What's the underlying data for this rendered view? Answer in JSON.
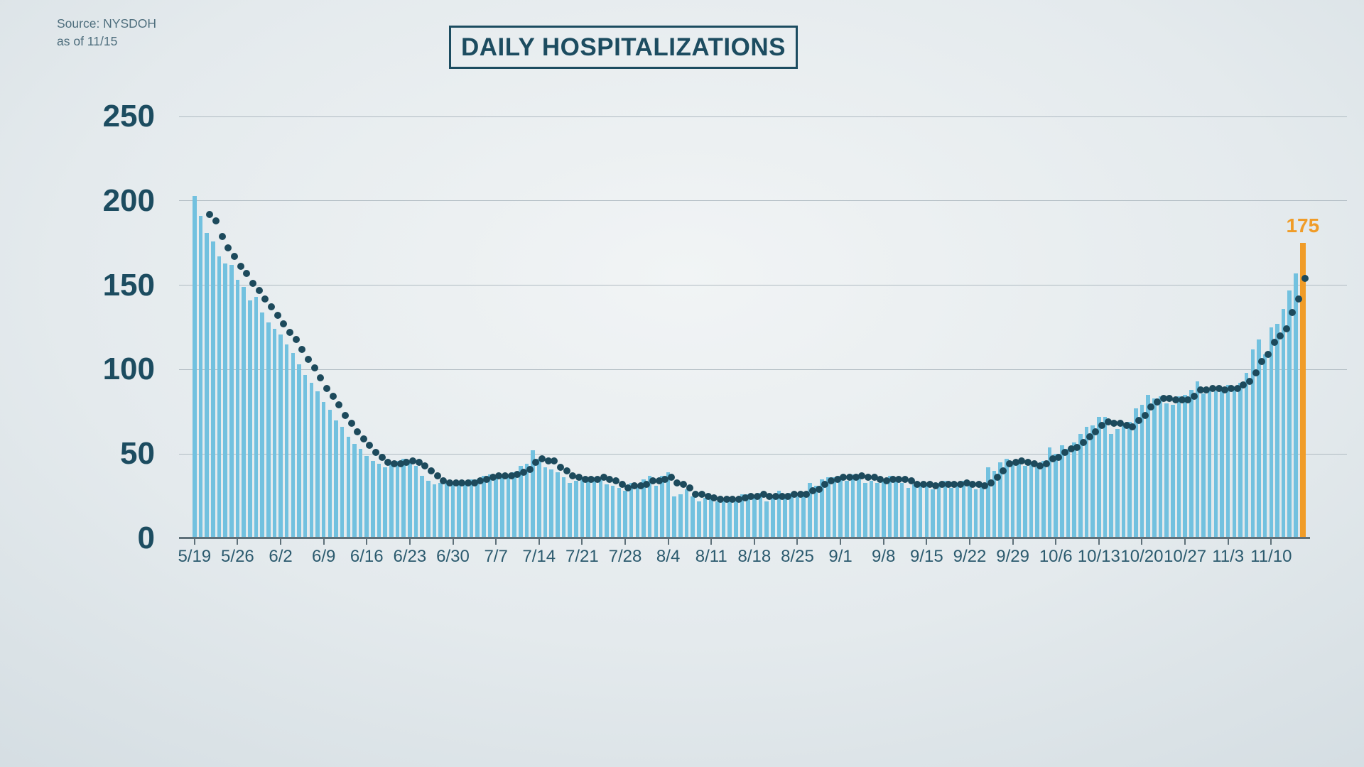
{
  "source": {
    "line1": "Source: NYSDOH",
    "line2": "as of 11/15"
  },
  "header": {
    "title": "DAILY HOSPITALIZATIONS"
  },
  "colors": {
    "ink": "#1c4c60",
    "bar": "#72c1df",
    "dot": "#1d4a5c",
    "accent": "#f09c28",
    "axis": "#5e7079",
    "grid": "#b0bbc2",
    "xlabel_ink": "#2b5a6e",
    "source_ink": "#4e6e7d"
  },
  "chart_data": {
    "type": "bar",
    "title": "DAILY HOSPITALIZATIONS",
    "xlabel": "",
    "ylabel": "",
    "ylim": [
      0,
      250
    ],
    "y_ticks": [
      0,
      50,
      100,
      150,
      200,
      250
    ],
    "grid": "horizontal",
    "x_tick_labels": [
      "5/19",
      "5/26",
      "6/2",
      "6/9",
      "6/16",
      "6/23",
      "6/30",
      "7/7",
      "7/14",
      "7/21",
      "7/28",
      "8/4",
      "8/11",
      "8/18",
      "8/25",
      "9/1",
      "9/8",
      "9/15",
      "9/22",
      "9/29",
      "10/6",
      "10/13",
      "10/20",
      "10/27",
      "11/3",
      "11/10"
    ],
    "x_tick_interval_days": 7,
    "dates": [
      "5/19",
      "5/20",
      "5/21",
      "5/22",
      "5/23",
      "5/24",
      "5/25",
      "5/26",
      "5/27",
      "5/28",
      "5/29",
      "5/30",
      "5/31",
      "6/1",
      "6/2",
      "6/3",
      "6/4",
      "6/5",
      "6/6",
      "6/7",
      "6/8",
      "6/9",
      "6/10",
      "6/11",
      "6/12",
      "6/13",
      "6/14",
      "6/15",
      "6/16",
      "6/17",
      "6/18",
      "6/19",
      "6/20",
      "6/21",
      "6/22",
      "6/23",
      "6/24",
      "6/25",
      "6/26",
      "6/27",
      "6/28",
      "6/29",
      "6/30",
      "7/1",
      "7/2",
      "7/3",
      "7/4",
      "7/5",
      "7/6",
      "7/7",
      "7/8",
      "7/9",
      "7/10",
      "7/11",
      "7/12",
      "7/13",
      "7/14",
      "7/15",
      "7/16",
      "7/17",
      "7/18",
      "7/19",
      "7/20",
      "7/21",
      "7/22",
      "7/23",
      "7/24",
      "7/25",
      "7/26",
      "7/27",
      "7/28",
      "7/29",
      "7/30",
      "7/31",
      "8/1",
      "8/2",
      "8/3",
      "8/4",
      "8/5",
      "8/6",
      "8/7",
      "8/8",
      "8/9",
      "8/10",
      "8/11",
      "8/12",
      "8/13",
      "8/14",
      "8/15",
      "8/16",
      "8/17",
      "8/18",
      "8/19",
      "8/20",
      "8/21",
      "8/22",
      "8/23",
      "8/24",
      "8/25",
      "8/26",
      "8/27",
      "8/28",
      "8/29",
      "8/30",
      "8/31",
      "9/1",
      "9/2",
      "9/3",
      "9/4",
      "9/5",
      "9/6",
      "9/7",
      "9/8",
      "9/9",
      "9/10",
      "9/11",
      "9/12",
      "9/13",
      "9/14",
      "9/15",
      "9/16",
      "9/17",
      "9/18",
      "9/19",
      "9/20",
      "9/21",
      "9/22",
      "9/23",
      "9/24",
      "9/25",
      "9/26",
      "9/27",
      "9/28",
      "9/29",
      "9/30",
      "10/1",
      "10/2",
      "10/3",
      "10/4",
      "10/5",
      "10/6",
      "10/7",
      "10/8",
      "10/9",
      "10/10",
      "10/11",
      "10/12",
      "10/13",
      "10/14",
      "10/15",
      "10/16",
      "10/17",
      "10/18",
      "10/19",
      "10/20",
      "10/21",
      "10/22",
      "10/23",
      "10/24",
      "10/25",
      "10/26",
      "10/27",
      "10/28",
      "10/29",
      "10/30",
      "10/31",
      "11/1",
      "11/2",
      "11/3",
      "11/4",
      "11/5",
      "11/6",
      "11/7",
      "11/8",
      "11/9",
      "11/10",
      "11/11",
      "11/12",
      "11/13",
      "11/14",
      "11/15"
    ],
    "series": [
      {
        "name": "daily hospitalizations",
        "render": "bar",
        "values": [
          203,
          191,
          181,
          176,
          167,
          163,
          162,
          153,
          149,
          141,
          143,
          134,
          128,
          124,
          121,
          115,
          110,
          103,
          97,
          92,
          87,
          81,
          76,
          70,
          66,
          60,
          56,
          53,
          49,
          46,
          44,
          42,
          45,
          46,
          47,
          45,
          43,
          37,
          34,
          32,
          33,
          34,
          33,
          32,
          33,
          35,
          35,
          37,
          38,
          37,
          36,
          38,
          39,
          43,
          44,
          52,
          47,
          42,
          41,
          39,
          36,
          33,
          34,
          35,
          36,
          36,
          36,
          32,
          31,
          30,
          28,
          33,
          31,
          35,
          37,
          31,
          37,
          39,
          25,
          26,
          29,
          25,
          22,
          24,
          23,
          22,
          23,
          24,
          23,
          26,
          26,
          25,
          27,
          22,
          24,
          28,
          25,
          27,
          25,
          27,
          33,
          31,
          35,
          36,
          36,
          37,
          34,
          38,
          38,
          33,
          34,
          33,
          35,
          37,
          34,
          33,
          30,
          32,
          33,
          31,
          29,
          33,
          34,
          30,
          32,
          34,
          31,
          29,
          31,
          42,
          40,
          45,
          47,
          46,
          44,
          43,
          44,
          42,
          46,
          54,
          50,
          55,
          53,
          57,
          62,
          66,
          67,
          72,
          72,
          62,
          65,
          68,
          69,
          77,
          79,
          85,
          83,
          84,
          80,
          79,
          84,
          85,
          88,
          93,
          86,
          89,
          87,
          89,
          91,
          90,
          92,
          98,
          112,
          118,
          109,
          125,
          127,
          136,
          147,
          157,
          175
        ]
      },
      {
        "name": "rolling average",
        "render": "dots",
        "values": [
          203,
          197,
          192,
          188,
          179,
          172,
          167,
          161,
          157,
          151,
          147,
          142,
          137,
          132,
          127,
          122,
          118,
          112,
          106,
          101,
          95,
          89,
          84,
          79,
          73,
          68,
          63,
          59,
          55,
          51,
          48,
          45,
          44,
          44,
          45,
          46,
          45,
          43,
          40,
          37,
          34,
          33,
          33,
          33,
          33,
          33,
          34,
          35,
          36,
          37,
          37,
          37,
          38,
          39,
          41,
          45,
          47,
          46,
          46,
          42,
          40,
          37,
          36,
          35,
          35,
          35,
          36,
          35,
          34,
          32,
          30,
          31,
          31,
          32,
          34,
          34,
          35,
          36,
          33,
          32,
          30,
          26,
          26,
          25,
          24,
          23,
          23,
          23,
          23,
          24,
          25,
          25,
          26,
          25,
          25,
          25,
          25,
          26,
          26,
          26,
          28,
          29,
          32,
          34,
          35,
          36,
          36,
          36,
          37,
          36,
          36,
          35,
          34,
          35,
          35,
          35,
          34,
          32,
          32,
          32,
          31,
          32,
          32,
          32,
          32,
          33,
          32,
          32,
          31,
          33,
          36,
          40,
          44,
          45,
          46,
          45,
          44,
          43,
          44,
          47,
          48,
          51,
          53,
          54,
          57,
          60,
          63,
          67,
          69,
          68,
          68,
          67,
          66,
          70,
          73,
          78,
          81,
          83,
          83,
          82,
          82,
          82,
          84,
          88,
          88,
          89,
          89,
          88,
          89,
          89,
          91,
          93,
          98,
          105,
          109,
          116,
          120,
          124,
          134,
          142,
          154
        ]
      }
    ],
    "annotation": {
      "label": "175",
      "date": "11/15",
      "value": 175
    },
    "legend": "none"
  }
}
